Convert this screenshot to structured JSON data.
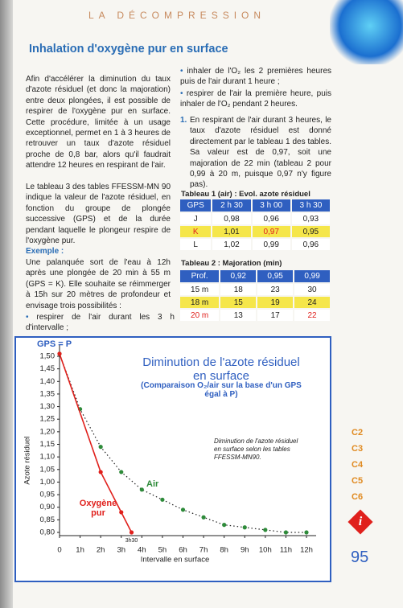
{
  "header": "LA DÉCOMPRESSION",
  "section_title": "Inhalation d'oxygène pur en surface",
  "left_column": {
    "paragraphs": [
      "Afin d'accélérer la diminution du taux d'azote résiduel (et donc la majoration) entre deux plongées, il est possible de respirer de l'oxygène pur en surface. Cette procédure, limitée à un usage exceptionnel, permet en 1 à 3 heures de retrouver un taux d'azote résiduel proche de 0,8 bar, alors qu'il faudrait attendre 12 heures en respirant de l'air.",
      "Le tableau 3 des tables FFESSM-MN 90 indique la valeur de l'azote résiduel, en fonction du groupe de plongée successive (GPS) et de la durée pendant laquelle le plongeur respire de l'oxygène pur."
    ],
    "example_title": "Exemple :",
    "example_text": "Une palanquée sort de l'eau à 12h après une plongée de 20 min à 55 m (GPS = K). Elle souhaite se réimmerger à 15h sur 20 mètres de profondeur et envisage trois possibilités :",
    "example_bullet": "respirer de l'air durant les 3 h d'intervalle ;"
  },
  "right_column": {
    "bullets": [
      "inhaler de l'O₂ les 2 premières heures puis de l'air durant 1 heure ;",
      "respirer de l'air la première heure, puis inhaler de l'O₂ pendant 2 heures."
    ],
    "numbered_marker": "1.",
    "numbered_text": "En respirant de l'air durant 3 heures, le taux d'azote résiduel est donné directement par le tableau 1 des tables. Sa valeur est de 0,97, soit une majoration de 22 min (tableau 2 pour 0,99 à 20 m, puisque 0,97 n'y figure pas)."
  },
  "table1": {
    "title": "Tableau 1 (air) : Evol. azote résiduel",
    "header": [
      "GPS",
      "2 h 30",
      "3 h 00",
      "3 h 30"
    ],
    "rows": [
      [
        "J",
        "0,98",
        "0,96",
        "0,93"
      ],
      [
        "K",
        "1,01",
        "0,97",
        "0,95"
      ],
      [
        "L",
        "1,02",
        "0,99",
        "0,96"
      ]
    ]
  },
  "table2": {
    "title": "Tableau 2 : Majoration (min)",
    "header": [
      "Prof.",
      "0,92",
      "0,95",
      "0,99"
    ],
    "rows": [
      [
        "15 m",
        "18",
        "23",
        "30"
      ],
      [
        "18 m",
        "15",
        "19",
        "24"
      ],
      [
        "20 m",
        "13",
        "17",
        "22"
      ]
    ]
  },
  "chart_data": {
    "type": "line",
    "title": "Diminution de l'azote résiduel en surface",
    "subtitle": "(Comparaison O₂/air sur la base d'un GPS égal à P)",
    "start_label": "GPS = P",
    "end_label": "3h30",
    "note": "Diminution de l'azote résiduel en surface selon les tables FFESSM-MN90.",
    "y_label": "Azote résiduel",
    "x_label": "Intervalle en surface",
    "xlim": [
      0,
      12
    ],
    "ylim": [
      0.8,
      1.5
    ],
    "xticks": [
      0,
      {
        "value": 1,
        "label": "1h"
      },
      {
        "value": 2,
        "label": "2h"
      },
      {
        "value": 3,
        "label": "3h"
      },
      {
        "value": 4,
        "label": "4h"
      },
      {
        "value": 5,
        "label": "5h"
      },
      {
        "value": 6,
        "label": "6h"
      },
      {
        "value": 7,
        "label": "7h"
      },
      {
        "value": 8,
        "label": "8h"
      },
      {
        "value": 9,
        "label": "9h"
      },
      {
        "value": 10,
        "label": "10h"
      },
      {
        "value": 11,
        "label": "11h"
      },
      {
        "value": 12,
        "label": "12h"
      }
    ],
    "yticks": [
      {
        "value": 0.8,
        "label": "0,80"
      },
      {
        "value": 0.85,
        "label": "0,85"
      },
      {
        "value": 0.9,
        "label": "0,90"
      },
      {
        "value": 0.95,
        "label": "0,95"
      },
      {
        "value": 1.0,
        "label": "1,00"
      },
      {
        "value": 1.05,
        "label": "1,05"
      },
      {
        "value": 1.1,
        "label": "1,10"
      },
      {
        "value": 1.15,
        "label": "1,15"
      },
      {
        "value": 1.2,
        "label": "1,20"
      },
      {
        "value": 1.25,
        "label": "1,25"
      },
      {
        "value": 1.3,
        "label": "1,30"
      },
      {
        "value": 1.35,
        "label": "1,35"
      },
      {
        "value": 1.4,
        "label": "1,40"
      },
      {
        "value": 1.45,
        "label": "1,45"
      },
      {
        "value": 1.5,
        "label": "1,50"
      }
    ],
    "series": [
      {
        "name": "Air",
        "color": "#2e8b3a",
        "x": [
          0,
          1,
          2,
          3,
          4,
          5,
          6,
          7,
          8,
          9,
          10,
          11,
          12
        ],
        "values": [
          1.51,
          1.29,
          1.14,
          1.04,
          0.97,
          0.93,
          0.89,
          0.86,
          0.83,
          0.82,
          0.81,
          0.8,
          0.8
        ]
      },
      {
        "name": "Oxygène pur",
        "color": "#e0201c",
        "x": [
          0,
          2,
          3,
          3.5
        ],
        "values": [
          1.51,
          1.04,
          0.88,
          0.8
        ]
      }
    ]
  },
  "side_tabs": [
    "C2",
    "C3",
    "C4",
    "C5",
    "C6"
  ],
  "icon": "i",
  "page_number": "95"
}
